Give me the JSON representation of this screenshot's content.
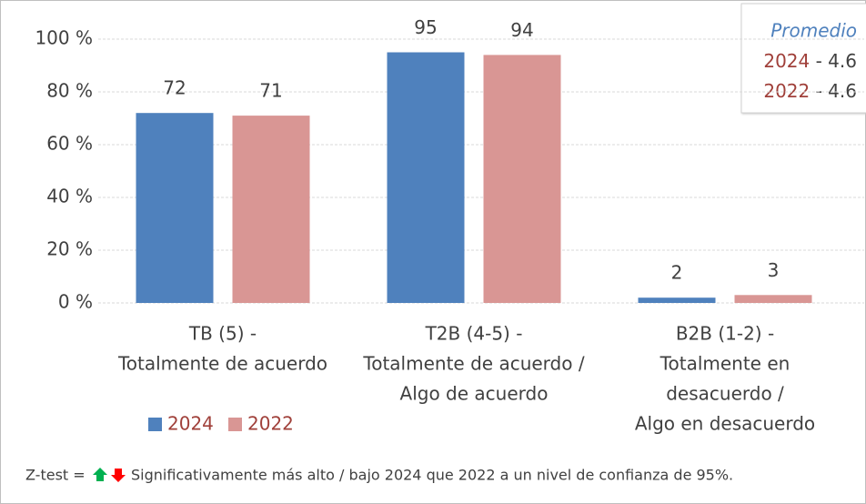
{
  "chart_data": {
    "type": "bar",
    "categories": [
      [
        "TB (5) -",
        "Totalmente de acuerdo"
      ],
      [
        "T2B (4-5) -",
        "Totalmente de acuerdo /",
        "Algo de acuerdo"
      ],
      [
        "B2B (1-2) -",
        "Totalmente en",
        "desacuerdo /",
        "Algo en desacuerdo"
      ]
    ],
    "series": [
      {
        "name": "2024",
        "color": "#4f81bd",
        "values": [
          72,
          95,
          2
        ]
      },
      {
        "name": "2022",
        "color": "#d99694",
        "values": [
          71,
          94,
          3
        ]
      }
    ],
    "ylim": [
      0,
      100
    ],
    "yticks": [
      {
        "value": 0,
        "label": "0 %"
      },
      {
        "value": 20,
        "label": "20 %"
      },
      {
        "value": 40,
        "label": "40 %"
      },
      {
        "value": 60,
        "label": "60 %"
      },
      {
        "value": 80,
        "label": "80 %"
      },
      {
        "value": 100,
        "label": "100 %"
      }
    ],
    "grid": true,
    "legend": "bottom-left",
    "summary": {
      "title": "Promedio",
      "rows": [
        {
          "name": "2024",
          "text": "- 4.6"
        },
        {
          "name": "2022",
          "text": "- 4.6"
        }
      ]
    },
    "footnote_prefix": "Z-test =",
    "footnote": "Significativamente más alto / bajo 2024 que 2022 a un nivel de confianza de 95%."
  }
}
